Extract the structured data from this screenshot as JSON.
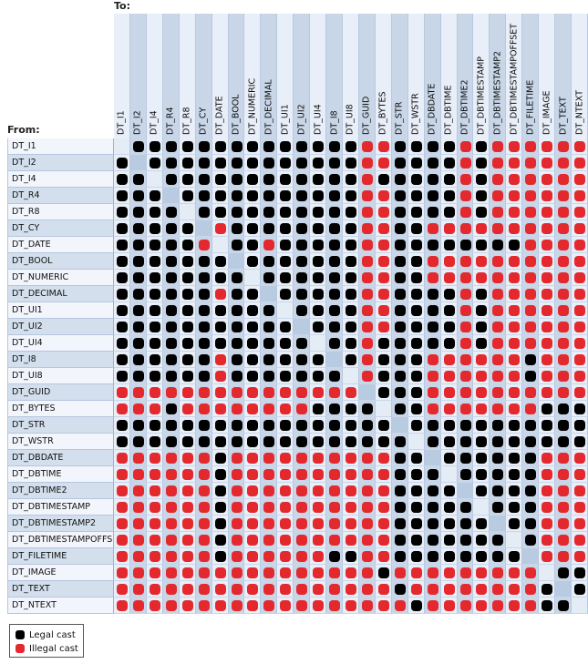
{
  "to_label": "To:",
  "from_label": "From:",
  "colors": {
    "legal": "#000000",
    "illegal": "#e3292e",
    "col_light": "#e9eff8",
    "col_dark": "#c8d6e8",
    "row_light": "#f2f5fb",
    "row_dark": "#d3dfec"
  },
  "types": [
    "DT_I1",
    "DT_I2",
    "DT_I4",
    "DT_R4",
    "DT_R8",
    "DT_CY",
    "DT_DATE",
    "DT_BOOL",
    "DT_NUMERIC",
    "DT_DECIMAL",
    "DT_UI1",
    "DT_UI2",
    "DT_UI4",
    "DT_I8",
    "DT_UI8",
    "DT_GUID",
    "DT_BYTES",
    "DT_STR",
    "DT_WSTR",
    "DT_DBDATE",
    "DT_DBTIME",
    "DT_DBTIME2",
    "DT_DBTIMESTAMP",
    "DT_DBTIMESTAMP2",
    "DT_DBTIMESTAMPOFFSET",
    "DT_FILETIME",
    "DT_IMAGE",
    "DT_TEXT",
    "DT_NTEXT"
  ],
  "matrix_key": {
    "B": "Legal cast",
    "R": "Illegal cast",
    "-": "none"
  },
  "matrix": [
    "-BBBBBBBBBBBBBBRRBBBBRBRRRRRR",
    "B-BBBBBBBBBBBBBRRBBBBRBRRRRRR",
    "BB-BBBBBBBBBBBBRBBBBBRBRRRRRR",
    "BBB-BBBBBBBBBBBRRBBBBRBRRRRRR",
    "BBBB-BBBBBBBBBBRRBBBBRBRRRRRR",
    "BBBBB-RBBBBBBBBRRBBRRRRRRRRRR",
    "BBBBBR-BBRBBBBBRRBBBBBBBBRRRR",
    "BBBBBBB-BBBBBBBRRBBRRRRRRRRRR",
    "BBBBBBBB-BBBBBBRRBBRRRRRRRRRR",
    "BBBBBBRBB-BBBBBRRBBBBRBRRRRRR",
    "BBBBBBBBBB-BBBBRRBBBBRBRRRRRR",
    "BBBBBBBBBBB-BBBRRBBBBRBRRRRRR",
    "BBBBBBBBBBBB-BBRBBBBBRBRRRRRR",
    "BBBBBBRBBBBBB-BRBBBRRRRRRBRRR",
    "BBBBBBRBBBBBBB-RBBBRRRRRRBRRR",
    "RRRRRRRRRRRRRRR-BBBRRRRRRRRRR",
    "RRRBRRRRRRRRBBBB-BBRRRRRRRBBB",
    "BBBBBBBBBBBBBBBBB-BBBBBBBBBBB",
    "BBBBBBBBBBBBBBBBBB-BBBBBBBBBB",
    "RRRRRRBRRRRRRRRRRBB-BBBBBBRRR",
    "RRRRRRBRRRRRRRRRRBBB-BBBBBRRR",
    "RRRRRRBRRRRRRRRRRBBBB-BBBBRRR",
    "RRRRRRBRRRRRRRRRRBBBBB-BBBRRR",
    "RRRRRRBRRRRRRRRRRBBBBBB-BBRRR",
    "RRRRRRBRRRRRRRRRRBBBBBBB-BRRR",
    "RRRRRRBRRRRRRBBRRBBBBBBBB-RRR",
    "RRRRRRRRRRRRRRRRBRRRRRRRRR-BB",
    "RRRRRRRRRRRRRRRRRBRRRRRRRRB-B",
    "RRRRRRRRRRRRRRRRRRBRRRRRRRBB-"
  ],
  "legend": {
    "legal": "Legal cast",
    "illegal": "Illegal cast"
  }
}
